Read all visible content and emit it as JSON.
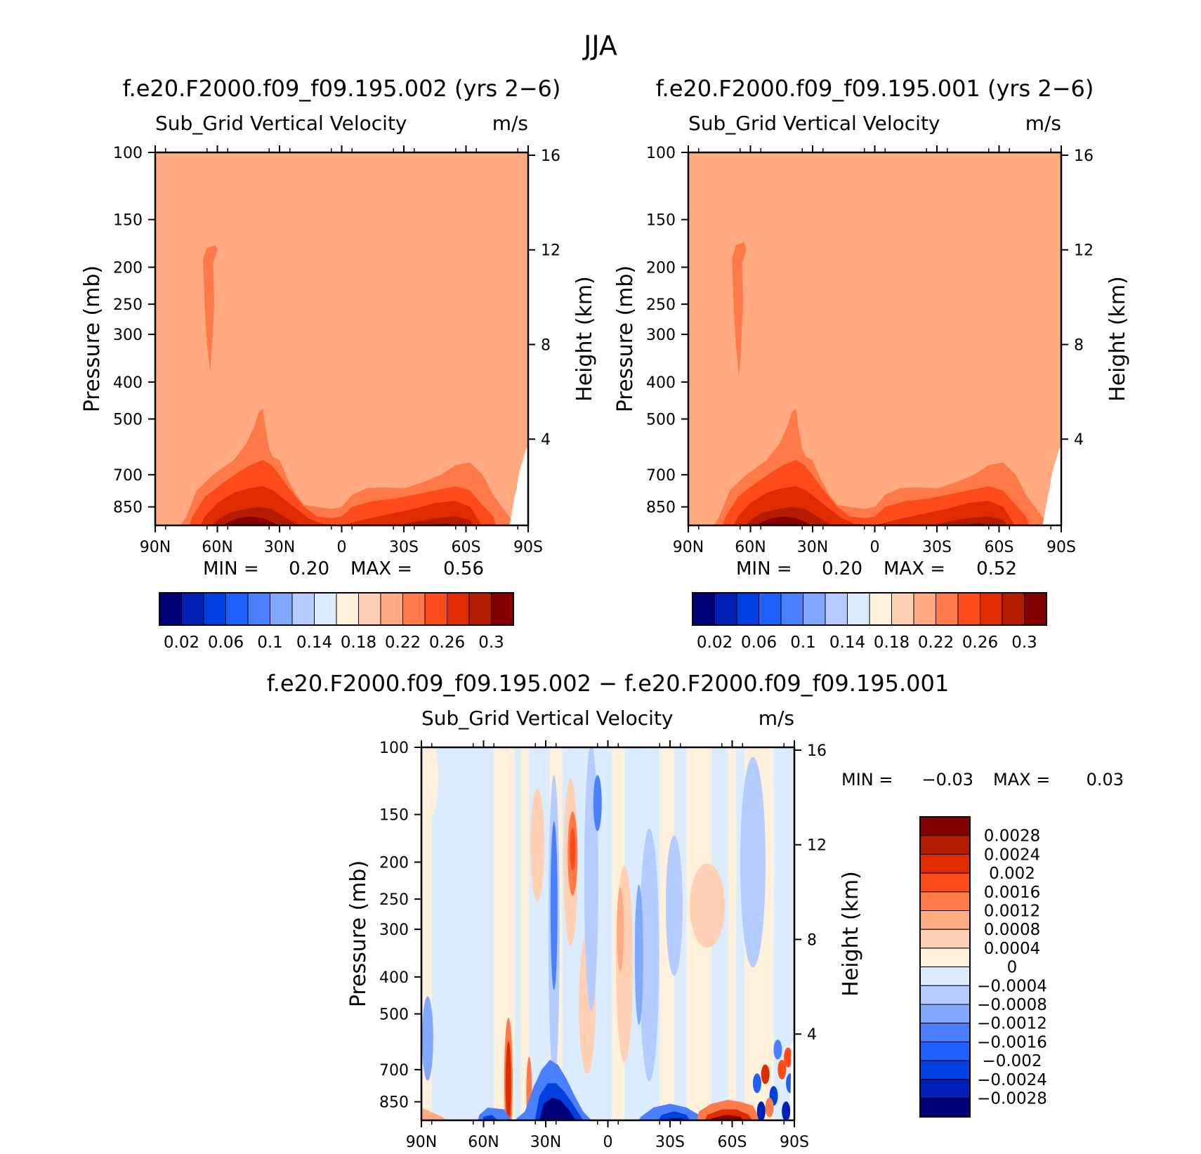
{
  "figure": {
    "title": "JJA"
  },
  "chart_data": [
    {
      "type": "heatmap",
      "title": "f.e20.F2000.f09_f09.195.002 (yrs 2−6)",
      "subtitle_left": "Sub_Grid Vertical Velocity",
      "subtitle_right": "m/s",
      "ylabel": "Pressure (mb)",
      "ylabel_right": "Height (km)",
      "x_ticks": [
        "90N",
        "60N",
        "30N",
        "0",
        "30S",
        "60S",
        "90S"
      ],
      "y_ticks": [
        100,
        150,
        200,
        250,
        300,
        400,
        500,
        700,
        850
      ],
      "y_ticks_right": [
        16,
        12,
        8,
        4
      ],
      "ylim": [
        1000,
        100
      ],
      "min_label": "MIN =",
      "min_value": "0.20",
      "max_label": "MAX =",
      "max_value": "0.56",
      "colorbar_labels": [
        "0.02",
        "0.06",
        "0.1",
        "0.14",
        "0.18",
        "0.22",
        "0.26",
        "0.3"
      ],
      "background_level": "0.2 – 0.22"
    },
    {
      "type": "heatmap",
      "title": "f.e20.F2000.f09_f09.195.001 (yrs 2−6)",
      "subtitle_left": "Sub_Grid Vertical Velocity",
      "subtitle_right": "m/s",
      "ylabel": "Pressure (mb)",
      "ylabel_right": "Height (km)",
      "x_ticks": [
        "90N",
        "60N",
        "30N",
        "0",
        "30S",
        "60S",
        "90S"
      ],
      "y_ticks": [
        100,
        150,
        200,
        250,
        300,
        400,
        500,
        700,
        850
      ],
      "y_ticks_right": [
        16,
        12,
        8,
        4
      ],
      "ylim": [
        1000,
        100
      ],
      "min_label": "MIN =",
      "min_value": "0.20",
      "max_label": "MAX =",
      "max_value": "0.52",
      "colorbar_labels": [
        "0.02",
        "0.06",
        "0.1",
        "0.14",
        "0.18",
        "0.22",
        "0.26",
        "0.3"
      ],
      "background_level": "0.2 – 0.22"
    },
    {
      "type": "heatmap",
      "title": "f.e20.F2000.f09_f09.195.002 − f.e20.F2000.f09_f09.195.001",
      "subtitle_left": "Sub_Grid Vertical Velocity",
      "subtitle_right": "m/s",
      "ylabel": "Pressure (mb)",
      "ylabel_right": "Height (km)",
      "x_ticks": [
        "90N",
        "60N",
        "30N",
        "0",
        "30S",
        "60S",
        "90S"
      ],
      "y_ticks": [
        100,
        150,
        200,
        250,
        300,
        400,
        500,
        700,
        850
      ],
      "y_ticks_right": [
        16,
        12,
        8,
        4
      ],
      "ylim": [
        1000,
        100
      ],
      "min_label": "MIN =",
      "min_value": "−0.03",
      "max_label": "MAX =",
      "max_value": "0.03",
      "colorbar_labels": [
        "0.0028",
        "0.0024",
        "0.002",
        "0.0016",
        "0.0012",
        "0.0008",
        "0.0004",
        "0",
        "−0.0004",
        "−0.0008",
        "−0.0012",
        "−0.0016",
        "−0.002",
        "−0.0024",
        "−0.0028"
      ]
    }
  ],
  "colors": {
    "sequential": [
      "#00007a",
      "#0020b8",
      "#0040e0",
      "#2060ff",
      "#4a80ff",
      "#80a8ff",
      "#b4ccff",
      "#dcecff",
      "#fff0dc",
      "#ffd0b4",
      "#ffaa80",
      "#ff7a48",
      "#ff4a1a",
      "#e02a00",
      "#b41c00",
      "#840000"
    ],
    "diverging": [
      "#840000",
      "#b41c00",
      "#e02a00",
      "#ff4a1a",
      "#ff7a48",
      "#ffaa80",
      "#ffd0b4",
      "#fff0dc",
      "#dcecff",
      "#b4ccff",
      "#80a8ff",
      "#4a80ff",
      "#2060ff",
      "#0040e0",
      "#0020b8",
      "#00007a"
    ]
  }
}
